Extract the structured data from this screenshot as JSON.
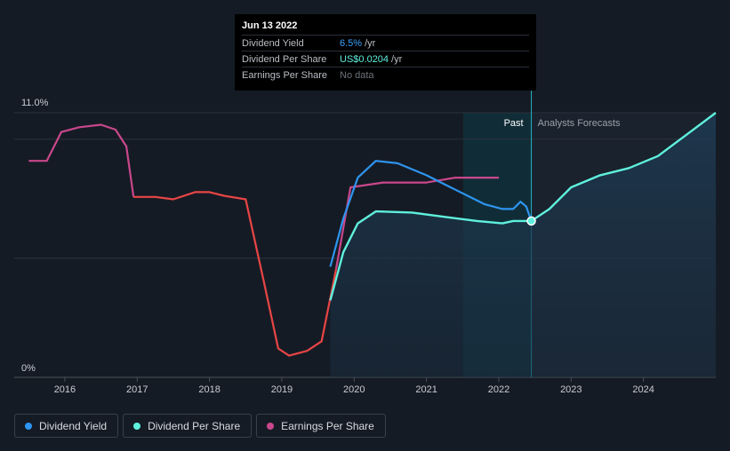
{
  "tooltip": {
    "date": "Jun 13 2022",
    "rows": [
      {
        "label": "Dividend Yield",
        "value": "6.5%",
        "unit": "/yr"
      },
      {
        "label": "Dividend Per Share",
        "value": "US$0.0204",
        "unit": "/yr"
      },
      {
        "label": "Earnings Per Share",
        "value": "No data",
        "unit": ""
      }
    ]
  },
  "regions": {
    "past": "Past",
    "forecast": "Analysts Forecasts"
  },
  "legend": [
    {
      "label": "Dividend Yield",
      "color": "#2e95f0"
    },
    {
      "label": "Dividend Per Share",
      "color": "#5ff0dd"
    },
    {
      "label": "Earnings Per Share",
      "color": "#c9478c"
    }
  ],
  "colors": {
    "background": "#151b24",
    "dividend_yield": "#2e95f0",
    "dividend_per_share": "#5ff0dd",
    "earnings_per_share": "#c9478c",
    "earnings_negative_trend": "#e84545"
  },
  "chart_data": {
    "type": "line",
    "ylim": [
      0,
      11.0
    ],
    "xlim": [
      2015.3,
      2025.0
    ],
    "y_tick_labels": [
      "11.0%",
      "0%"
    ],
    "x_ticks": [
      2016,
      2017,
      2018,
      2019,
      2020,
      2021,
      2022,
      2023,
      2024
    ],
    "past_forecast_divider": 2022.45,
    "series": [
      {
        "name": "Dividend Yield",
        "color": "#2e95f0",
        "points": [
          [
            2019.67,
            4.6
          ],
          [
            2019.85,
            6.6
          ],
          [
            2020.05,
            8.3
          ],
          [
            2020.3,
            9.0
          ],
          [
            2020.6,
            8.9
          ],
          [
            2021.0,
            8.4
          ],
          [
            2021.4,
            7.8
          ],
          [
            2021.8,
            7.2
          ],
          [
            2022.05,
            7.0
          ],
          [
            2022.2,
            7.0
          ],
          [
            2022.3,
            7.3
          ],
          [
            2022.38,
            7.1
          ],
          [
            2022.45,
            6.5
          ]
        ]
      },
      {
        "name": "Dividend Per Share",
        "color": "#5ff0dd",
        "points": [
          [
            2019.67,
            3.2
          ],
          [
            2019.85,
            5.2
          ],
          [
            2020.05,
            6.4
          ],
          [
            2020.3,
            6.9
          ],
          [
            2020.8,
            6.85
          ],
          [
            2021.3,
            6.65
          ],
          [
            2021.7,
            6.5
          ],
          [
            2022.05,
            6.4
          ],
          [
            2022.2,
            6.5
          ],
          [
            2022.45,
            6.5
          ],
          [
            2022.7,
            7.0
          ],
          [
            2023.0,
            7.9
          ],
          [
            2023.4,
            8.4
          ],
          [
            2023.8,
            8.7
          ],
          [
            2024.2,
            9.2
          ],
          [
            2024.6,
            10.1
          ],
          [
            2025.0,
            11.0
          ]
        ]
      },
      {
        "name": "Earnings Per Share",
        "color": "#c9478c",
        "points": [
          [
            2015.5,
            9.0
          ],
          [
            2015.75,
            9.0
          ],
          [
            2015.95,
            10.2
          ],
          [
            2016.2,
            10.4
          ],
          [
            2016.5,
            10.5
          ],
          [
            2016.7,
            10.3
          ],
          [
            2016.85,
            9.6
          ],
          [
            2016.95,
            7.5
          ],
          [
            2017.25,
            7.5
          ],
          [
            2017.5,
            7.4
          ],
          [
            2017.8,
            7.7
          ],
          [
            2018.0,
            7.7
          ],
          [
            2018.2,
            7.55
          ],
          [
            2018.5,
            7.4
          ],
          [
            2018.75,
            4.0
          ],
          [
            2018.95,
            1.2
          ],
          [
            2019.1,
            0.9
          ],
          [
            2019.35,
            1.1
          ],
          [
            2019.55,
            1.5
          ],
          [
            2019.75,
            4.5
          ],
          [
            2019.95,
            7.9
          ],
          [
            2020.4,
            8.1
          ],
          [
            2021.0,
            8.1
          ],
          [
            2021.4,
            8.3
          ],
          [
            2022.0,
            8.3
          ]
        ]
      }
    ]
  }
}
